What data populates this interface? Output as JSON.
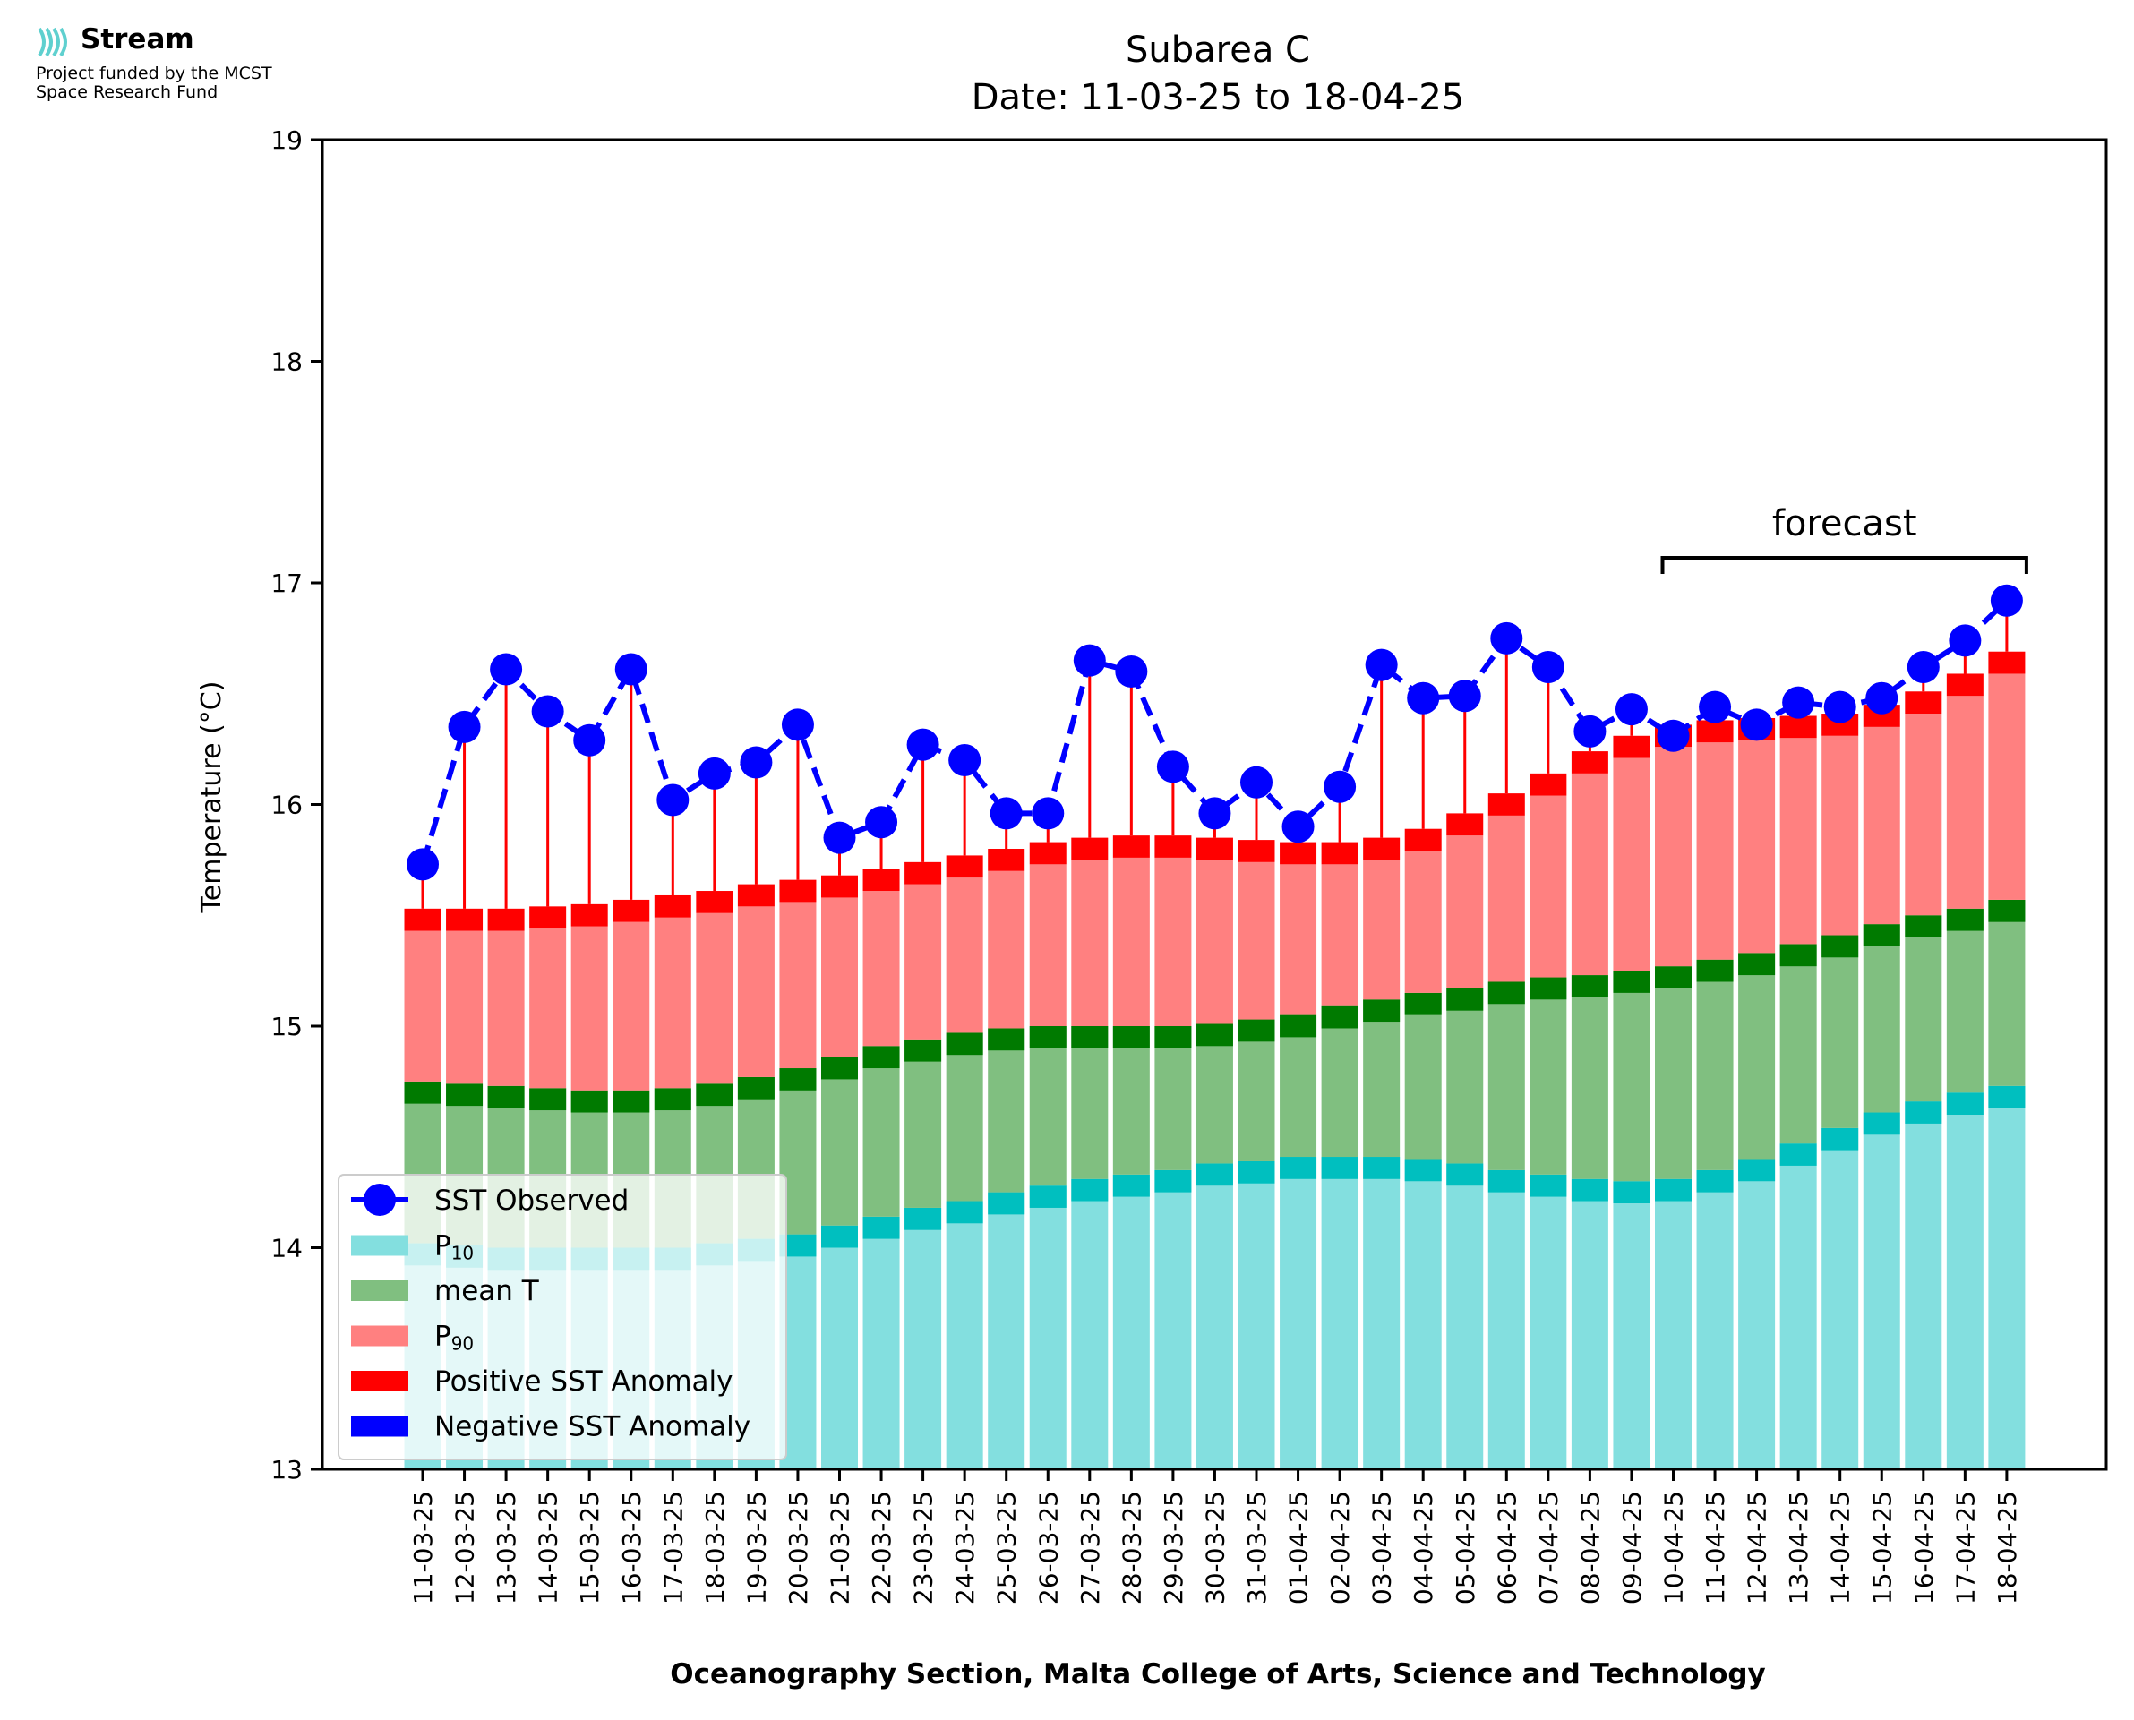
{
  "logo": {
    "name": "Stream",
    "funding_line1": "Project funded by the MCST",
    "funding_line2": "Space Research Fund"
  },
  "colors": {
    "p10": "#83dfdf",
    "p10_band": "#00bfbf",
    "mean": "#80bf80",
    "mean_band": "#007a00",
    "p90": "#ff8080",
    "p90_band": "#ff0000",
    "observed": "#0000ff",
    "negative_anomaly": "#0000ff"
  },
  "chart_data": {
    "type": "bar",
    "title": "Subarea C",
    "subtitle": "Date: 11-03-25 to 18-04-25",
    "xlabel": "Oceanography Section, Malta College of Arts, Science and Technology",
    "ylabel": "Temperature (°C)",
    "ylim": [
      13,
      19
    ],
    "yticks": [
      13,
      14,
      15,
      16,
      17,
      18,
      19
    ],
    "grid": false,
    "legend_placement": "lower-left",
    "categories": [
      "11-03-25",
      "12-03-25",
      "13-03-25",
      "14-03-25",
      "15-03-25",
      "16-03-25",
      "17-03-25",
      "18-03-25",
      "19-03-25",
      "20-03-25",
      "21-03-25",
      "22-03-25",
      "23-03-25",
      "24-03-25",
      "25-03-25",
      "26-03-25",
      "27-03-25",
      "28-03-25",
      "29-03-25",
      "30-03-25",
      "31-03-25",
      "01-04-25",
      "02-04-25",
      "03-04-25",
      "04-04-25",
      "05-04-25",
      "06-04-25",
      "07-04-25",
      "08-04-25",
      "09-04-25",
      "10-04-25",
      "11-04-25",
      "12-04-25",
      "13-04-25",
      "14-04-25",
      "15-04-25",
      "16-04-25",
      "17-04-25",
      "18-04-25"
    ],
    "series": [
      {
        "name": "P10",
        "values": [
          14.02,
          14.01,
          14.0,
          14.0,
          14.0,
          14.0,
          14.0,
          14.02,
          14.04,
          14.06,
          14.1,
          14.14,
          14.18,
          14.21,
          14.25,
          14.28,
          14.31,
          14.33,
          14.35,
          14.38,
          14.39,
          14.41,
          14.41,
          14.41,
          14.4,
          14.38,
          14.35,
          14.33,
          14.31,
          14.3,
          14.31,
          14.35,
          14.4,
          14.47,
          14.54,
          14.61,
          14.66,
          14.7,
          14.73
        ]
      },
      {
        "name": "mean T",
        "values": [
          14.75,
          14.74,
          14.73,
          14.72,
          14.71,
          14.71,
          14.72,
          14.74,
          14.77,
          14.81,
          14.86,
          14.91,
          14.94,
          14.97,
          14.99,
          15.0,
          15.0,
          15.0,
          15.0,
          15.01,
          15.03,
          15.05,
          15.09,
          15.12,
          15.15,
          15.17,
          15.2,
          15.22,
          15.23,
          15.25,
          15.27,
          15.3,
          15.33,
          15.37,
          15.41,
          15.46,
          15.5,
          15.53,
          15.57
        ]
      },
      {
        "name": "P90",
        "values": [
          15.43,
          15.43,
          15.43,
          15.44,
          15.45,
          15.47,
          15.49,
          15.51,
          15.54,
          15.56,
          15.58,
          15.61,
          15.64,
          15.67,
          15.7,
          15.73,
          15.75,
          15.76,
          15.76,
          15.75,
          15.74,
          15.73,
          15.73,
          15.75,
          15.79,
          15.86,
          15.95,
          16.04,
          16.14,
          16.21,
          16.26,
          16.28,
          16.29,
          16.3,
          16.31,
          16.35,
          16.41,
          16.49,
          16.59
        ]
      },
      {
        "name": "SST Observed",
        "values": [
          15.73,
          16.35,
          16.61,
          16.42,
          16.29,
          16.61,
          16.02,
          16.14,
          16.19,
          16.36,
          15.85,
          15.92,
          16.27,
          16.2,
          15.96,
          15.96,
          16.65,
          16.6,
          16.17,
          15.96,
          16.1,
          15.9,
          16.08,
          16.63,
          16.48,
          16.49,
          16.75,
          16.62,
          16.33,
          16.43,
          16.31,
          16.44,
          16.36,
          16.46,
          16.44,
          16.48,
          16.62,
          16.74,
          16.92
        ]
      }
    ],
    "anomaly_band_height": 0.1,
    "forecast": {
      "label": "forecast",
      "from": "10-04-25",
      "to": "18-04-25"
    },
    "legend": [
      "SST Observed",
      "P10",
      "mean T",
      "P90",
      "Positive SST Anomaly",
      "Negative SST Anomaly"
    ]
  }
}
